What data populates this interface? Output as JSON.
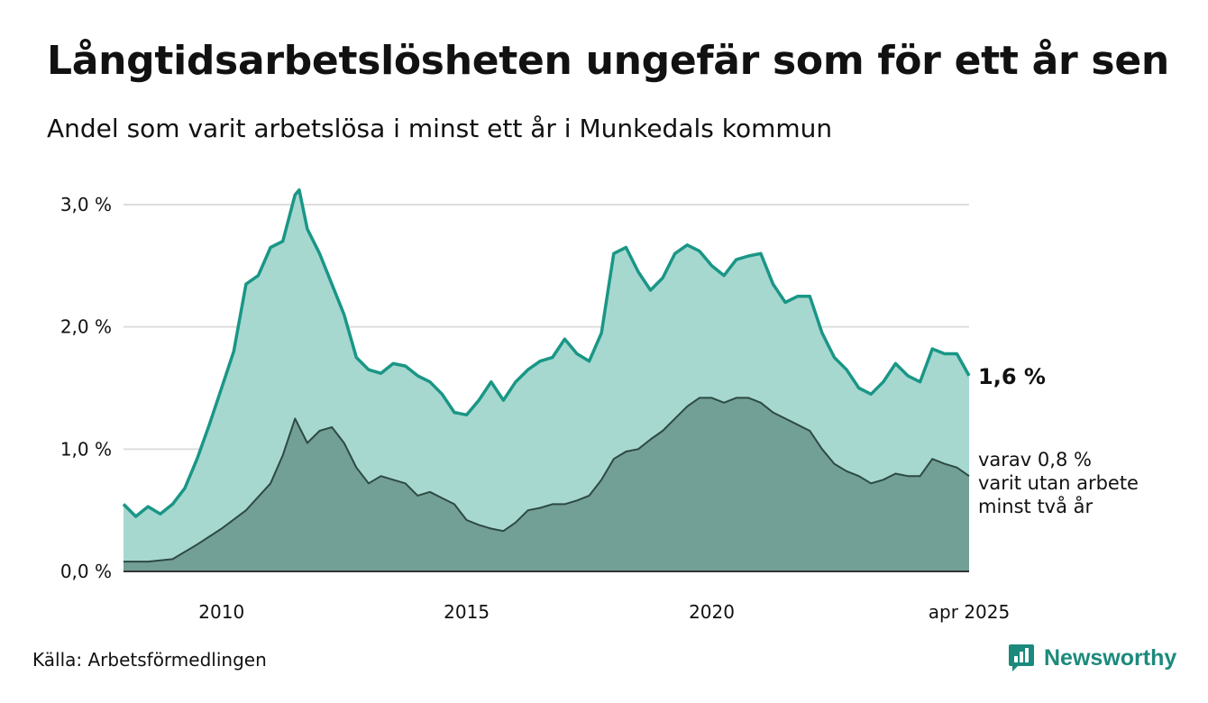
{
  "header": {
    "title": "Långtidsarbetslösheten ungefär som för ett år sen",
    "subtitle": "Andel som varit arbetslösa i minst ett år i Munkedals kommun"
  },
  "footer": {
    "source": "Källa: Arbetsförmedlingen",
    "brand": "Newsworthy",
    "brand_icon": "bar-chart-speech-bubble-icon"
  },
  "colors": {
    "series1_line": "#1a9686",
    "series1_fill": "#a6d8d0",
    "series2_line": "#2d4a43",
    "series2_fill": "#729f96",
    "gridline": "#dddddd",
    "axis": "#333333",
    "brand": "#1b8a7c"
  },
  "chart_data": {
    "type": "area",
    "title": "Långtidsarbetslösheten ungefär som för ett år sen",
    "subtitle": "Andel som varit arbetslösa i minst ett år i Munkedals kommun",
    "x_range": [
      "2008-01",
      "2025-04"
    ],
    "ylim": [
      0,
      3.0
    ],
    "y_ticks": [
      0,
      1,
      2,
      3
    ],
    "y_tick_labels": [
      "0,0 %",
      "1,0 %",
      "2,0 %",
      "3,0 %"
    ],
    "x_ticks": [
      {
        "date": "2010-01",
        "label": "2010"
      },
      {
        "date": "2015-01",
        "label": "2015"
      },
      {
        "date": "2020-01",
        "label": "2020"
      },
      {
        "date": "2025-04",
        "label": "apr 2025"
      }
    ],
    "grid": true,
    "series": [
      {
        "key": "min_ett_ar",
        "end_label": "1,6 %",
        "points": [
          [
            "2008-01",
            0.55
          ],
          [
            "2008-04",
            0.45
          ],
          [
            "2008-07",
            0.53
          ],
          [
            "2008-10",
            0.47
          ],
          [
            "2009-01",
            0.55
          ],
          [
            "2009-04",
            0.68
          ],
          [
            "2009-07",
            0.92
          ],
          [
            "2009-10",
            1.2
          ],
          [
            "2010-01",
            1.5
          ],
          [
            "2010-04",
            1.8
          ],
          [
            "2010-07",
            2.35
          ],
          [
            "2010-10",
            2.42
          ],
          [
            "2011-01",
            2.65
          ],
          [
            "2011-04",
            2.7
          ],
          [
            "2011-07",
            3.08
          ],
          [
            "2011-08",
            3.12
          ],
          [
            "2011-10",
            2.8
          ],
          [
            "2012-01",
            2.6
          ],
          [
            "2012-04",
            2.35
          ],
          [
            "2012-07",
            2.1
          ],
          [
            "2012-10",
            1.75
          ],
          [
            "2013-01",
            1.65
          ],
          [
            "2013-04",
            1.62
          ],
          [
            "2013-07",
            1.7
          ],
          [
            "2013-10",
            1.68
          ],
          [
            "2014-01",
            1.6
          ],
          [
            "2014-04",
            1.55
          ],
          [
            "2014-07",
            1.45
          ],
          [
            "2014-10",
            1.3
          ],
          [
            "2015-01",
            1.28
          ],
          [
            "2015-04",
            1.4
          ],
          [
            "2015-07",
            1.55
          ],
          [
            "2015-10",
            1.4
          ],
          [
            "2016-01",
            1.55
          ],
          [
            "2016-04",
            1.65
          ],
          [
            "2016-07",
            1.72
          ],
          [
            "2016-10",
            1.75
          ],
          [
            "2017-01",
            1.9
          ],
          [
            "2017-04",
            1.78
          ],
          [
            "2017-07",
            1.72
          ],
          [
            "2017-10",
            1.95
          ],
          [
            "2018-01",
            2.6
          ],
          [
            "2018-04",
            2.65
          ],
          [
            "2018-07",
            2.45
          ],
          [
            "2018-10",
            2.3
          ],
          [
            "2019-01",
            2.4
          ],
          [
            "2019-04",
            2.6
          ],
          [
            "2019-07",
            2.67
          ],
          [
            "2019-10",
            2.62
          ],
          [
            "2020-01",
            2.5
          ],
          [
            "2020-04",
            2.42
          ],
          [
            "2020-07",
            2.55
          ],
          [
            "2020-10",
            2.58
          ],
          [
            "2021-01",
            2.6
          ],
          [
            "2021-04",
            2.35
          ],
          [
            "2021-07",
            2.2
          ],
          [
            "2021-10",
            2.25
          ],
          [
            "2022-01",
            2.25
          ],
          [
            "2022-04",
            1.95
          ],
          [
            "2022-07",
            1.75
          ],
          [
            "2022-10",
            1.65
          ],
          [
            "2023-01",
            1.5
          ],
          [
            "2023-04",
            1.45
          ],
          [
            "2023-07",
            1.55
          ],
          [
            "2023-10",
            1.7
          ],
          [
            "2024-01",
            1.6
          ],
          [
            "2024-04",
            1.55
          ],
          [
            "2024-07",
            1.82
          ],
          [
            "2024-10",
            1.78
          ],
          [
            "2025-01",
            1.78
          ],
          [
            "2025-04",
            1.6
          ]
        ]
      },
      {
        "key": "minst_tva_ar",
        "end_label": [
          "varav 0,8 %",
          "varit utan arbete",
          "minst två år"
        ],
        "points": [
          [
            "2008-01",
            0.08
          ],
          [
            "2008-07",
            0.08
          ],
          [
            "2009-01",
            0.1
          ],
          [
            "2009-07",
            0.22
          ],
          [
            "2010-01",
            0.35
          ],
          [
            "2010-07",
            0.5
          ],
          [
            "2011-01",
            0.72
          ],
          [
            "2011-04",
            0.95
          ],
          [
            "2011-07",
            1.25
          ],
          [
            "2011-10",
            1.05
          ],
          [
            "2012-01",
            1.15
          ],
          [
            "2012-04",
            1.18
          ],
          [
            "2012-07",
            1.05
          ],
          [
            "2012-10",
            0.85
          ],
          [
            "2013-01",
            0.72
          ],
          [
            "2013-04",
            0.78
          ],
          [
            "2013-07",
            0.75
          ],
          [
            "2013-10",
            0.72
          ],
          [
            "2014-01",
            0.62
          ],
          [
            "2014-04",
            0.65
          ],
          [
            "2014-07",
            0.6
          ],
          [
            "2014-10",
            0.55
          ],
          [
            "2015-01",
            0.42
          ],
          [
            "2015-04",
            0.38
          ],
          [
            "2015-07",
            0.35
          ],
          [
            "2015-10",
            0.33
          ],
          [
            "2016-01",
            0.4
          ],
          [
            "2016-04",
            0.5
          ],
          [
            "2016-07",
            0.52
          ],
          [
            "2016-10",
            0.55
          ],
          [
            "2017-01",
            0.55
          ],
          [
            "2017-04",
            0.58
          ],
          [
            "2017-07",
            0.62
          ],
          [
            "2017-10",
            0.75
          ],
          [
            "2018-01",
            0.92
          ],
          [
            "2018-04",
            0.98
          ],
          [
            "2018-07",
            1.0
          ],
          [
            "2018-10",
            1.08
          ],
          [
            "2019-01",
            1.15
          ],
          [
            "2019-04",
            1.25
          ],
          [
            "2019-07",
            1.35
          ],
          [
            "2019-10",
            1.42
          ],
          [
            "2020-01",
            1.42
          ],
          [
            "2020-04",
            1.38
          ],
          [
            "2020-07",
            1.42
          ],
          [
            "2020-10",
            1.42
          ],
          [
            "2021-01",
            1.38
          ],
          [
            "2021-04",
            1.3
          ],
          [
            "2021-07",
            1.25
          ],
          [
            "2021-10",
            1.2
          ],
          [
            "2022-01",
            1.15
          ],
          [
            "2022-04",
            1.0
          ],
          [
            "2022-07",
            0.88
          ],
          [
            "2022-10",
            0.82
          ],
          [
            "2023-01",
            0.78
          ],
          [
            "2023-04",
            0.72
          ],
          [
            "2023-07",
            0.75
          ],
          [
            "2023-10",
            0.8
          ],
          [
            "2024-01",
            0.78
          ],
          [
            "2024-04",
            0.78
          ],
          [
            "2024-07",
            0.92
          ],
          [
            "2024-10",
            0.88
          ],
          [
            "2025-01",
            0.85
          ],
          [
            "2025-04",
            0.78
          ]
        ]
      }
    ]
  }
}
